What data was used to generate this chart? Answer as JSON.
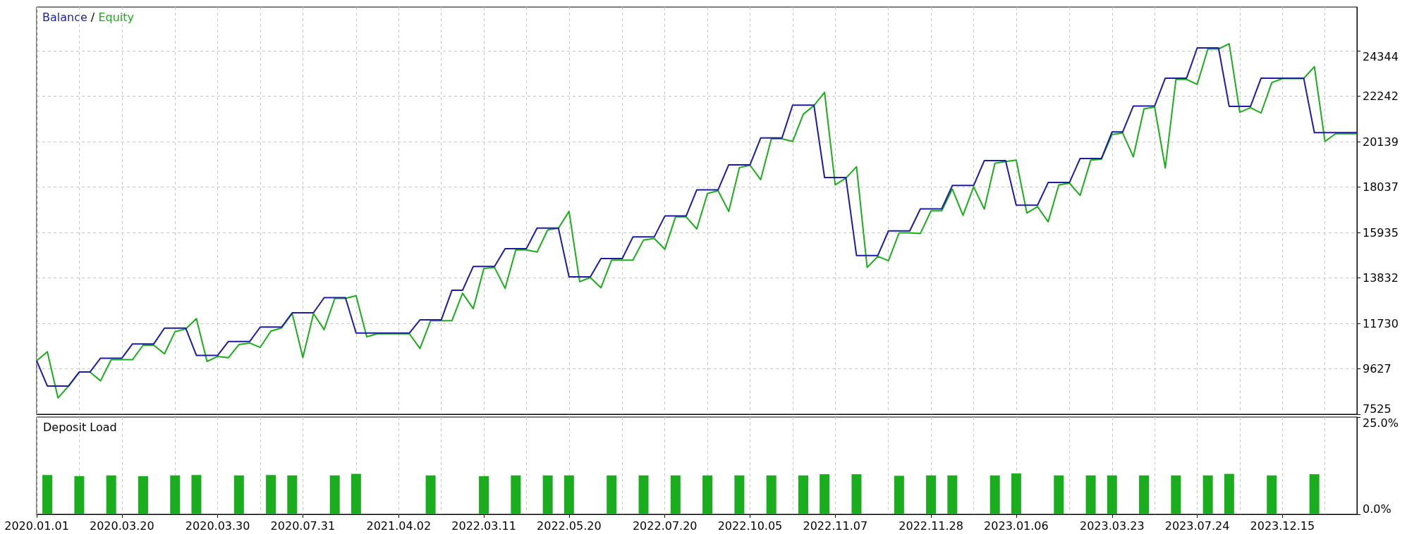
{
  "chart_data": [
    {
      "type": "line",
      "legend": "top left",
      "annotations": [
        "/"
      ],
      "grid": true,
      "tick_labels": "y",
      "ylim": [
        7525,
        26370
      ],
      "categories": [
        "2020.01.01",
        null,
        null,
        null,
        null,
        null,
        null,
        null,
        "2020.03.20",
        null,
        null,
        null,
        null,
        null,
        null,
        null,
        null,
        "2020.03.30",
        null,
        null,
        null,
        null,
        null,
        null,
        null,
        "2020.07.31",
        null,
        null,
        null,
        null,
        null,
        null,
        null,
        null,
        "2021.04.02",
        null,
        null,
        null,
        null,
        null,
        null,
        null,
        "2022.03.11",
        null,
        null,
        null,
        null,
        null,
        null,
        null,
        "2022.05.20",
        null,
        null,
        null,
        null,
        null,
        null,
        null,
        null,
        "2022.07.20",
        null,
        null,
        null,
        null,
        null,
        null,
        null,
        "2022.10.05",
        null,
        null,
        null,
        null,
        null,
        null,
        null,
        "2022.11.07",
        null,
        null,
        null,
        null,
        null,
        null,
        null,
        null,
        "2022.11.28",
        null,
        null,
        null,
        null,
        null,
        null,
        null,
        "2023.01.06",
        null,
        null,
        null,
        null,
        null,
        null,
        null,
        null,
        "2023.03.23",
        null,
        null,
        null,
        null,
        null,
        null,
        null,
        "2023.07.24",
        null,
        null,
        null,
        null,
        null,
        null,
        null,
        "2023.12.15",
        null,
        null,
        null,
        null,
        null,
        null,
        null
      ],
      "yticks": [
        7525,
        9627,
        11730,
        13832,
        15935,
        18037,
        20139,
        22242,
        24344
      ],
      "series": [
        {
          "name": "Balance",
          "color": "#1c1ca8",
          "values": [
            10000,
            8830,
            8830,
            8830,
            9480,
            9480,
            10120,
            10120,
            10120,
            10780,
            10780,
            10780,
            11510,
            11510,
            11510,
            10250,
            10250,
            10250,
            10890,
            10890,
            10890,
            11560,
            11560,
            11560,
            12220,
            12220,
            12220,
            12920,
            12920,
            12920,
            11280,
            11280,
            11280,
            11280,
            11280,
            11280,
            11890,
            11890,
            11890,
            13260,
            13260,
            14360,
            14360,
            14360,
            15190,
            15190,
            15190,
            16140,
            16140,
            16140,
            13880,
            13880,
            13880,
            14730,
            14730,
            14730,
            15730,
            15730,
            15730,
            16700,
            16700,
            16700,
            17910,
            17910,
            17910,
            19070,
            19070,
            19070,
            20310,
            20310,
            20310,
            21830,
            21830,
            21830,
            18480,
            18480,
            18480,
            14870,
            14870,
            14870,
            16010,
            16010,
            16010,
            17030,
            17030,
            17030,
            18110,
            18110,
            18110,
            19260,
            19260,
            19260,
            17200,
            17200,
            17200,
            18250,
            18250,
            18250,
            19360,
            19360,
            19360,
            20590,
            20590,
            21790,
            21790,
            21790,
            23080,
            23080,
            23080,
            24480,
            24480,
            24480,
            21770,
            21770,
            21770,
            23080,
            23080,
            23080,
            23080,
            23080,
            20560,
            20560,
            20560,
            20560,
            20560
          ]
        },
        {
          "name": "Equity",
          "color": "#1aae1a",
          "values": [
            10000,
            10420,
            8280,
            8830,
            9480,
            9480,
            9070,
            10050,
            10050,
            10050,
            10720,
            10720,
            10320,
            11350,
            11470,
            11950,
            9970,
            10200,
            10140,
            10750,
            10820,
            10620,
            11370,
            11520,
            12190,
            10150,
            12180,
            11440,
            12890,
            12890,
            13010,
            11110,
            11250,
            11250,
            11250,
            11250,
            10570,
            11850,
            11850,
            11850,
            13130,
            12410,
            14270,
            14320,
            13350,
            15130,
            15130,
            15030,
            16060,
            16130,
            16910,
            13660,
            13850,
            13380,
            14660,
            14660,
            14660,
            15590,
            15660,
            15160,
            16660,
            16660,
            16100,
            17740,
            17870,
            16910,
            18940,
            19050,
            18380,
            20270,
            20270,
            20150,
            21410,
            21810,
            22420,
            18140,
            18450,
            18980,
            14320,
            14830,
            14630,
            15920,
            15920,
            15890,
            16940,
            16940,
            17950,
            16730,
            18050,
            17020,
            19140,
            19220,
            19290,
            16840,
            17130,
            16430,
            18140,
            18220,
            17650,
            19290,
            19330,
            20470,
            20540,
            19440,
            21660,
            21740,
            18920,
            23020,
            23020,
            22790,
            24430,
            24430,
            24670,
            21500,
            21710,
            21470,
            22870,
            23060,
            23060,
            23060,
            23610,
            20150,
            20510,
            20510,
            20510
          ]
        }
      ]
    },
    {
      "type": "bar",
      "title": "Deposit Load",
      "grid": "x",
      "ylim": [
        0,
        25
      ],
      "categories": [
        "2020.01.01",
        null,
        null,
        null,
        null,
        null,
        null,
        null,
        "2020.03.20",
        null,
        null,
        null,
        null,
        null,
        null,
        null,
        null,
        "2020.03.30",
        null,
        null,
        null,
        null,
        null,
        null,
        null,
        "2020.07.31",
        null,
        null,
        null,
        null,
        null,
        null,
        null,
        null,
        "2021.04.02",
        null,
        null,
        null,
        null,
        null,
        null,
        null,
        "2022.03.11",
        null,
        null,
        null,
        null,
        null,
        null,
        null,
        "2022.05.20",
        null,
        null,
        null,
        null,
        null,
        null,
        null,
        null,
        "2022.07.20",
        null,
        null,
        null,
        null,
        null,
        null,
        null,
        "2022.10.05",
        null,
        null,
        null,
        null,
        null,
        null,
        null,
        "2022.11.07",
        null,
        null,
        null,
        null,
        null,
        null,
        null,
        null,
        "2022.11.28",
        null,
        null,
        null,
        null,
        null,
        null,
        null,
        "2023.01.06",
        null,
        null,
        null,
        null,
        null,
        null,
        null,
        null,
        "2023.03.23",
        null,
        null,
        null,
        null,
        null,
        null,
        null,
        "2023.07.24",
        null,
        null,
        null,
        null,
        null,
        null,
        null,
        "2023.12.15",
        null,
        null,
        null,
        null,
        null,
        null,
        null
      ],
      "yticks": [
        {
          "value": 0,
          "label": "0.0%"
        },
        {
          "value": 25,
          "label": "25.0%"
        }
      ],
      "series": [
        {
          "color": "#1aae1f",
          "values": [
            null,
            10.1,
            null,
            null,
            9.8,
            null,
            null,
            10,
            null,
            null,
            9.8,
            null,
            null,
            10,
            null,
            10.1,
            null,
            null,
            null,
            10,
            null,
            null,
            10.1,
            null,
            10,
            null,
            null,
            null,
            10,
            null,
            10.4,
            null,
            null,
            null,
            null,
            null,
            null,
            10,
            null,
            null,
            null,
            null,
            9.8,
            null,
            null,
            10,
            null,
            null,
            10,
            null,
            10,
            null,
            null,
            null,
            10,
            null,
            null,
            10,
            null,
            null,
            10,
            null,
            null,
            10,
            null,
            null,
            10,
            null,
            null,
            10,
            null,
            null,
            10,
            null,
            10.3,
            null,
            null,
            10.3,
            null,
            null,
            null,
            9.9,
            null,
            null,
            10,
            null,
            10,
            null,
            null,
            null,
            10,
            null,
            10.5,
            null,
            null,
            null,
            10,
            null,
            null,
            10,
            null,
            10,
            null,
            null,
            10,
            null,
            null,
            10,
            null,
            null,
            10,
            null,
            10.4,
            null,
            null,
            null,
            10,
            null,
            null,
            null,
            10.3,
            null,
            null,
            null,
            null
          ]
        }
      ]
    }
  ]
}
